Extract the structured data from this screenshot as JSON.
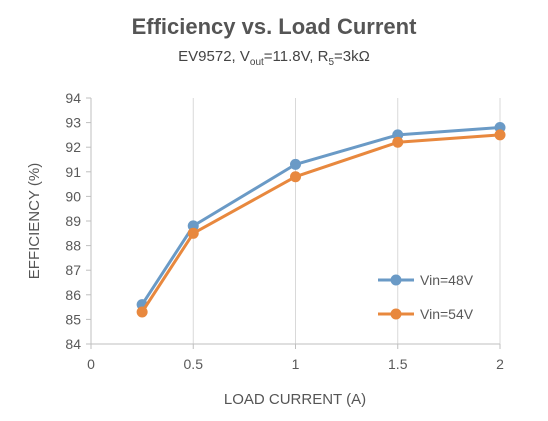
{
  "chart_data": {
    "type": "line",
    "title": "Efficiency vs. Load Current",
    "subtitle": {
      "prefix": "EV9572, V",
      "v_sub": "out",
      "middle": "=11.8V, R",
      "r_sub": "5",
      "suffix": "=3kΩ"
    },
    "xlabel": "LOAD CURRENT (A)",
    "ylabel": "EFFICIENCY (%)",
    "xlim": [
      0,
      2
    ],
    "ylim": [
      84,
      94
    ],
    "x_ticks": [
      0,
      0.5,
      1,
      1.5,
      2
    ],
    "x_tick_labels": [
      "0",
      "0.5",
      "1",
      "1.5",
      "2"
    ],
    "y_ticks": [
      84,
      85,
      86,
      87,
      88,
      89,
      90,
      91,
      92,
      93,
      94
    ],
    "y_tick_labels": [
      "84",
      "85",
      "86",
      "87",
      "88",
      "89",
      "90",
      "91",
      "92",
      "93",
      "94"
    ],
    "grid": "vertical",
    "legend_position": "right",
    "series": [
      {
        "name": "Vin=48V",
        "color": "#6a9ac6",
        "x": [
          0.25,
          0.5,
          1,
          1.5,
          2
        ],
        "values": [
          85.6,
          88.8,
          91.3,
          92.5,
          92.8
        ]
      },
      {
        "name": "Vin=54V",
        "color": "#e8883e",
        "x": [
          0.25,
          0.5,
          1,
          1.5,
          2
        ],
        "values": [
          85.3,
          88.5,
          90.8,
          92.2,
          92.5
        ]
      }
    ]
  }
}
